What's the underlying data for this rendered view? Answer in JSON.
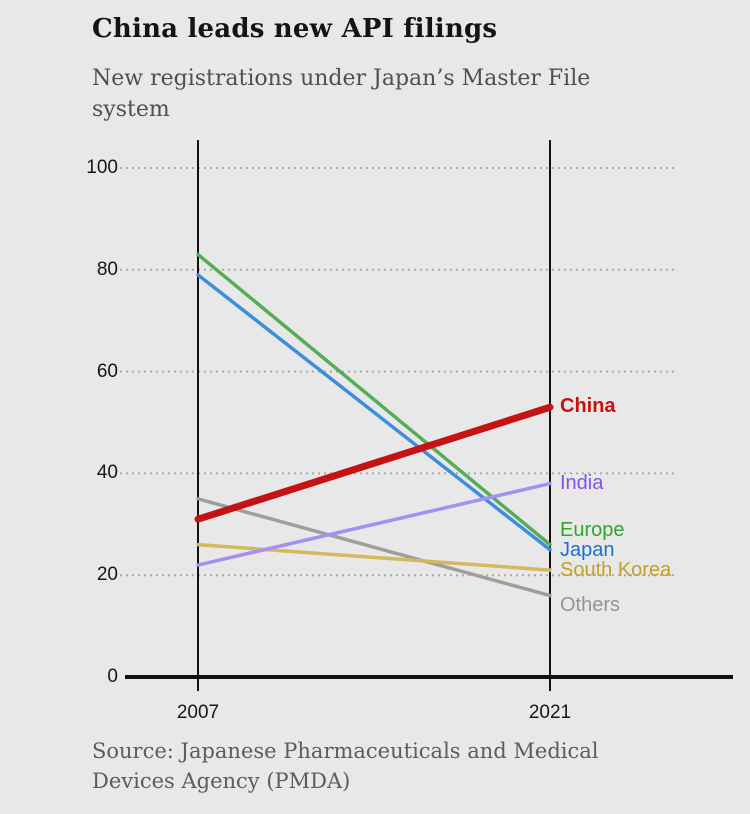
{
  "page": {
    "title": "China leads new API filings",
    "subtitle": "New registrations under Japan’s Master File system",
    "source": "Source: Japanese Pharmaceuticals and Medical Devices Agency (PMDA)"
  },
  "chart_data": {
    "type": "line",
    "variant": "slope-chart",
    "title": "China leads new API filings",
    "subtitle": "New registrations under Japan’s Master File system",
    "source": "Source: Japanese Pharmaceuticals and Medical Devices Agency (PMDA)",
    "x": [
      "2007",
      "2021"
    ],
    "xlabel": "",
    "ylabel": "",
    "ylim": [
      0,
      100
    ],
    "yticks": [
      0,
      20,
      40,
      60,
      80,
      100
    ],
    "grid": "horizontal-dashed",
    "legend_position": "right-of-lines",
    "axis_color": "#121212",
    "gridline_color": "#a9a9a9",
    "background_color": "#e8e8e8",
    "series": [
      {
        "name": "Others",
        "values": [
          35,
          16
        ],
        "line_color": "#9e9e9e",
        "label_color": "#949494",
        "width": 3.5,
        "bold": false,
        "label_dy": 10
      },
      {
        "name": "South Korea",
        "values": [
          26,
          21
        ],
        "line_color": "#d3b95e",
        "label_color": "#c0a125",
        "width": 3.5,
        "bold": false,
        "label_dy": 1
      },
      {
        "name": "Japan",
        "values": [
          79,
          25
        ],
        "line_color": "#3d8edc",
        "label_color": "#1b6fd6",
        "width": 3.5,
        "bold": false,
        "label_dy": 1
      },
      {
        "name": "Europe",
        "values": [
          83,
          26
        ],
        "line_color": "#57ad57",
        "label_color": "#2fa42f",
        "width": 3.5,
        "bold": false,
        "label_dy": -14
      },
      {
        "name": "India",
        "values": [
          22,
          38
        ],
        "line_color": "#a88ef0",
        "label_color": "#7c55e8",
        "width": 3.5,
        "bold": false,
        "label_dy": 0
      },
      {
        "name": "China",
        "values": [
          31,
          53
        ],
        "line_color": "#c51212",
        "label_color": "#c51212",
        "width": 7,
        "bold": true,
        "label_dy": 0
      }
    ]
  }
}
